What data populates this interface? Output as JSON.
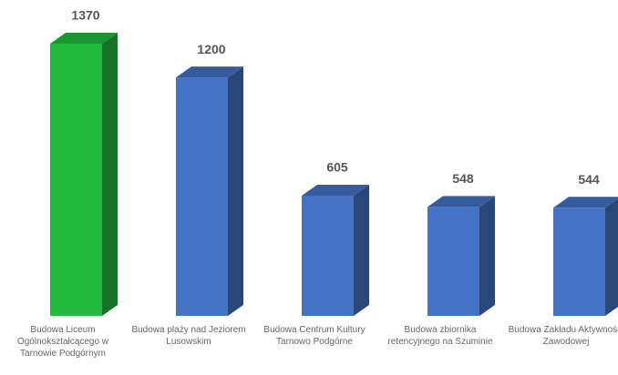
{
  "chart_data": {
    "type": "bar3d",
    "categories": [
      "Budowa Liceum Ogólnokształcącego w Tarnowie Podgórnym",
      "Budowa plaży nad Jeziorem Lusowskim",
      "Budowa Centrum Kultury Tarnowo Podgórne",
      "Budowa zbiornika retencyjnego na Szuminie",
      "Budowa Zakładu Aktywności Zawodowej"
    ],
    "values": [
      1370,
      1200,
      605,
      548,
      544
    ],
    "colors": [
      "#22bb3f",
      "#4472c4",
      "#4472c4",
      "#4472c4",
      "#4472c4"
    ]
  }
}
